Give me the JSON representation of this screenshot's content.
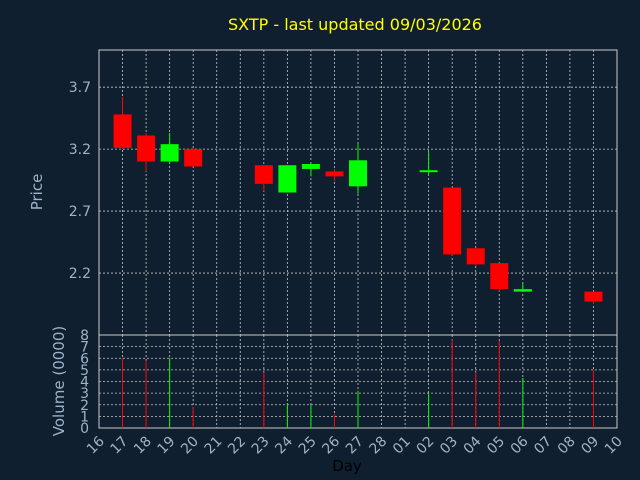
{
  "chart_data": {
    "type": "candlestick",
    "title": "SXTP - last updated 09/03/2026",
    "xlabel": "Day",
    "price_ylabel": "Price",
    "volume_ylabel": "Volume (0000)",
    "x_tick_labels": [
      "16",
      "17",
      "18",
      "19",
      "20",
      "21",
      "22",
      "23",
      "24",
      "25",
      "26",
      "27",
      "28",
      "01",
      "02",
      "03",
      "04",
      "05",
      "06",
      "07",
      "08",
      "09",
      "10"
    ],
    "price_ticks": [
      "2.2",
      "2.7",
      "3.2",
      "3.7"
    ],
    "volume_ticks": [
      "0",
      "1",
      "2",
      "3",
      "4",
      "5",
      "6",
      "7",
      "8"
    ],
    "price_ylim": [
      1.7,
      4.0
    ],
    "volume_ylim": [
      0,
      8
    ],
    "grid": true,
    "up_color": "#00ff00",
    "down_color": "#ff0000",
    "background": "#0f1f30",
    "title_color": "#ffff00",
    "candles": [
      {
        "day": "17",
        "open": 3.48,
        "high": 3.62,
        "low": 3.2,
        "close": 3.21,
        "volume": 6.0
      },
      {
        "day": "18",
        "open": 3.31,
        "high": 3.33,
        "low": 3.02,
        "close": 3.1,
        "volume": 5.8
      },
      {
        "day": "19",
        "open": 3.1,
        "high": 3.33,
        "low": 3.08,
        "close": 3.24,
        "volume": 6.0
      },
      {
        "day": "20",
        "open": 3.2,
        "high": 3.21,
        "low": 3.06,
        "close": 3.06,
        "volume": 1.8
      },
      {
        "day": "23",
        "open": 3.07,
        "high": 3.07,
        "low": 2.86,
        "close": 2.92,
        "volume": 4.8
      },
      {
        "day": "24",
        "open": 2.85,
        "high": 3.07,
        "low": 2.85,
        "close": 3.07,
        "volume": 2.1
      },
      {
        "day": "25",
        "open": 3.04,
        "high": 3.09,
        "low": 2.98,
        "close": 3.08,
        "volume": 2.0
      },
      {
        "day": "26",
        "open": 3.02,
        "high": 3.04,
        "low": 2.94,
        "close": 2.98,
        "volume": 1.2
      },
      {
        "day": "27",
        "open": 2.9,
        "high": 3.24,
        "low": 2.84,
        "close": 3.11,
        "volume": 3.2
      },
      {
        "day": "02",
        "open": 3.02,
        "high": 3.18,
        "low": 3.0,
        "close": 3.03,
        "volume": 3.0
      },
      {
        "day": "03",
        "open": 2.89,
        "high": 2.89,
        "low": 2.34,
        "close": 2.35,
        "volume": 7.6
      },
      {
        "day": "04",
        "open": 2.4,
        "high": 2.4,
        "low": 2.26,
        "close": 2.27,
        "volume": 4.8
      },
      {
        "day": "05",
        "open": 2.28,
        "high": 2.28,
        "low": 2.05,
        "close": 2.07,
        "volume": 7.5
      },
      {
        "day": "06",
        "open": 2.05,
        "high": 2.12,
        "low": 2.05,
        "close": 2.07,
        "volume": 4.3
      },
      {
        "day": "09",
        "open": 2.05,
        "high": 2.05,
        "low": 1.95,
        "close": 1.97,
        "volume": 5.0
      }
    ]
  }
}
